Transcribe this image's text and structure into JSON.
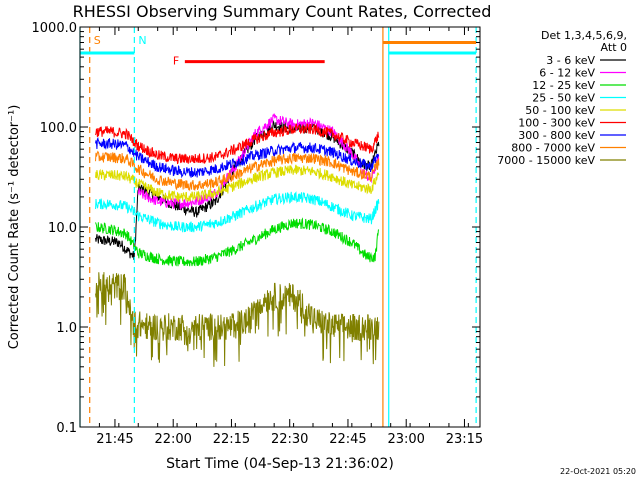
{
  "chart_data": {
    "type": "line",
    "title": "RHESSI Observing Summary Count Rates, Corrected",
    "xlabel": "Start Time (04-Sep-13 21:36:02)",
    "ylabel": "Corrected Count Rate (s⁻¹ detector⁻¹)",
    "yscale": "log",
    "ylim": [
      0.1,
      1000
    ],
    "xlim_minutes": [
      0,
      103
    ],
    "x_ticks": [
      {
        "label": "21:45",
        "min": 9
      },
      {
        "label": "22:00",
        "min": 24
      },
      {
        "label": "22:15",
        "min": 39
      },
      {
        "label": "22:30",
        "min": 54
      },
      {
        "label": "22:45",
        "min": 69
      },
      {
        "label": "23:00",
        "min": 84
      },
      {
        "label": "23:15",
        "min": 99
      }
    ],
    "y_ticks": [
      {
        "label": "0.1",
        "value": 0.1
      },
      {
        "label": "1.0",
        "value": 1
      },
      {
        "label": "10.0",
        "value": 10
      },
      {
        "label": "100.0",
        "value": 100
      },
      {
        "label": "1000.0",
        "value": 1000
      }
    ],
    "legend_header": [
      "Det 1,3,4,5,6,9,",
      "Att 0"
    ],
    "series": [
      {
        "name": "3 - 6 keV",
        "color": "#000000",
        "points": [
          [
            4,
            7.5
          ],
          [
            10,
            7
          ],
          [
            14,
            5
          ],
          [
            15,
            25
          ],
          [
            20,
            20
          ],
          [
            25,
            16
          ],
          [
            30,
            14
          ],
          [
            35,
            18
          ],
          [
            40,
            40
          ],
          [
            45,
            75
          ],
          [
            50,
            105
          ],
          [
            55,
            95
          ],
          [
            60,
            100
          ],
          [
            65,
            80
          ],
          [
            70,
            55
          ],
          [
            73,
            42
          ],
          [
            75,
            40
          ],
          [
            77,
            70
          ]
        ]
      },
      {
        "name": "6 - 12 keV",
        "color": "#ff00ff",
        "points": [
          [
            15,
            22
          ],
          [
            20,
            18
          ],
          [
            25,
            17
          ],
          [
            30,
            18
          ],
          [
            35,
            22
          ],
          [
            40,
            40
          ],
          [
            45,
            85
          ],
          [
            50,
            120
          ],
          [
            55,
            105
          ],
          [
            60,
            110
          ],
          [
            65,
            90
          ],
          [
            70,
            55
          ],
          [
            73,
            35
          ],
          [
            75,
            30
          ],
          [
            77,
            50
          ]
        ]
      },
      {
        "name": "12 - 25 keV",
        "color": "#00dd00",
        "points": [
          [
            4,
            10
          ],
          [
            8,
            9.5
          ],
          [
            12,
            8.5
          ],
          [
            15,
            5.5
          ],
          [
            20,
            4.8
          ],
          [
            25,
            4.5
          ],
          [
            30,
            4.5
          ],
          [
            35,
            5
          ],
          [
            40,
            6
          ],
          [
            45,
            7.5
          ],
          [
            50,
            9.5
          ],
          [
            55,
            11
          ],
          [
            60,
            10.5
          ],
          [
            65,
            9
          ],
          [
            70,
            7
          ],
          [
            74,
            5
          ],
          [
            76,
            5
          ],
          [
            77,
            10
          ]
        ]
      },
      {
        "name": "25 - 50 keV",
        "color": "#00ffff",
        "points": [
          [
            4,
            17
          ],
          [
            8,
            17
          ],
          [
            12,
            16
          ],
          [
            15,
            13
          ],
          [
            20,
            11
          ],
          [
            25,
            10
          ],
          [
            30,
            10
          ],
          [
            35,
            11
          ],
          [
            40,
            13
          ],
          [
            45,
            16
          ],
          [
            50,
            19
          ],
          [
            55,
            20
          ],
          [
            60,
            19
          ],
          [
            65,
            16
          ],
          [
            70,
            13
          ],
          [
            75,
            12
          ],
          [
            77,
            18
          ]
        ]
      },
      {
        "name": "50 - 100 keV",
        "color": "#dddd00",
        "points": [
          [
            4,
            33
          ],
          [
            8,
            33
          ],
          [
            12,
            32
          ],
          [
            15,
            27
          ],
          [
            20,
            22
          ],
          [
            25,
            20
          ],
          [
            30,
            20
          ],
          [
            35,
            22
          ],
          [
            40,
            26
          ],
          [
            45,
            31
          ],
          [
            50,
            35
          ],
          [
            55,
            37
          ],
          [
            60,
            36
          ],
          [
            65,
            32
          ],
          [
            70,
            26
          ],
          [
            75,
            24
          ],
          [
            77,
            35
          ]
        ]
      },
      {
        "name": "100 - 300 keV",
        "color": "#ff0000",
        "points": [
          [
            4,
            90
          ],
          [
            8,
            90
          ],
          [
            12,
            85
          ],
          [
            15,
            65
          ],
          [
            20,
            52
          ],
          [
            25,
            48
          ],
          [
            30,
            48
          ],
          [
            35,
            50
          ],
          [
            40,
            60
          ],
          [
            45,
            75
          ],
          [
            50,
            88
          ],
          [
            55,
            95
          ],
          [
            60,
            95
          ],
          [
            65,
            85
          ],
          [
            70,
            70
          ],
          [
            75,
            60
          ],
          [
            77,
            85
          ]
        ]
      },
      {
        "name": "300 - 800 keV",
        "color": "#0000ff",
        "points": [
          [
            4,
            68
          ],
          [
            8,
            68
          ],
          [
            12,
            65
          ],
          [
            15,
            50
          ],
          [
            20,
            40
          ],
          [
            25,
            36
          ],
          [
            30,
            35
          ],
          [
            35,
            38
          ],
          [
            40,
            44
          ],
          [
            45,
            52
          ],
          [
            50,
            58
          ],
          [
            55,
            62
          ],
          [
            60,
            62
          ],
          [
            65,
            56
          ],
          [
            70,
            46
          ],
          [
            75,
            40
          ],
          [
            77,
            55
          ]
        ]
      },
      {
        "name": "800 - 7000 keV",
        "color": "#ff8000",
        "points": [
          [
            4,
            50
          ],
          [
            8,
            50
          ],
          [
            12,
            48
          ],
          [
            15,
            38
          ],
          [
            20,
            30
          ],
          [
            25,
            27
          ],
          [
            30,
            26
          ],
          [
            35,
            28
          ],
          [
            40,
            33
          ],
          [
            45,
            40
          ],
          [
            50,
            46
          ],
          [
            55,
            49
          ],
          [
            60,
            49
          ],
          [
            65,
            44
          ],
          [
            70,
            36
          ],
          [
            75,
            32
          ],
          [
            77,
            45
          ]
        ]
      },
      {
        "name": "7000 - 15000 keV",
        "color": "#808000",
        "points": [
          [
            4,
            2.6
          ],
          [
            8,
            2.6
          ],
          [
            12,
            2.5
          ],
          [
            13,
            1.3
          ],
          [
            15,
            1.05
          ],
          [
            20,
            1.0
          ],
          [
            25,
            1.0
          ],
          [
            30,
            1.0
          ],
          [
            35,
            1.0
          ],
          [
            38,
            1.0
          ],
          [
            40,
            1.05
          ],
          [
            42,
            1.1
          ],
          [
            44,
            1.2
          ],
          [
            45,
            1.8
          ],
          [
            50,
            2.0
          ],
          [
            55,
            2.0
          ],
          [
            58,
            1.6
          ],
          [
            60,
            1.2
          ],
          [
            65,
            1.0
          ],
          [
            70,
            1.0
          ],
          [
            75,
            1.0
          ],
          [
            77,
            1.0
          ]
        ]
      }
    ],
    "flags": [
      {
        "label": "S",
        "color": "#ff8000",
        "line_y": 550,
        "x_end": 2,
        "x_marker": 2.5
      },
      {
        "label": "N",
        "color": "#00ffff",
        "line_y": 550,
        "x_end": 14,
        "x_marker": 14
      },
      {
        "label": "F",
        "color": "#ff0000",
        "line_y": 450,
        "x_start": 27,
        "x_end": 63
      }
    ],
    "flag_lines_right": [
      {
        "color": "#ff8000",
        "y": 700,
        "x_start": 78,
        "x_end": 102
      },
      {
        "color": "#00ffff",
        "y": 550,
        "x_start": 79.5,
        "x_end": 102
      }
    ],
    "vertical_lines": [
      {
        "x": 0,
        "color": "#00ffff",
        "style": "solid"
      },
      {
        "x": 2.5,
        "color": "#ff8000",
        "style": "dashed"
      },
      {
        "x": 14,
        "color": "#00ffff",
        "style": "dashed"
      },
      {
        "x": 78,
        "color": "#ff8000",
        "style": "solid"
      },
      {
        "x": 79.5,
        "color": "#00ffff",
        "style": "solid"
      },
      {
        "x": 102,
        "color": "#00ffff",
        "style": "dashed"
      }
    ]
  },
  "footer_date": "22-Oct-2021 05:20"
}
